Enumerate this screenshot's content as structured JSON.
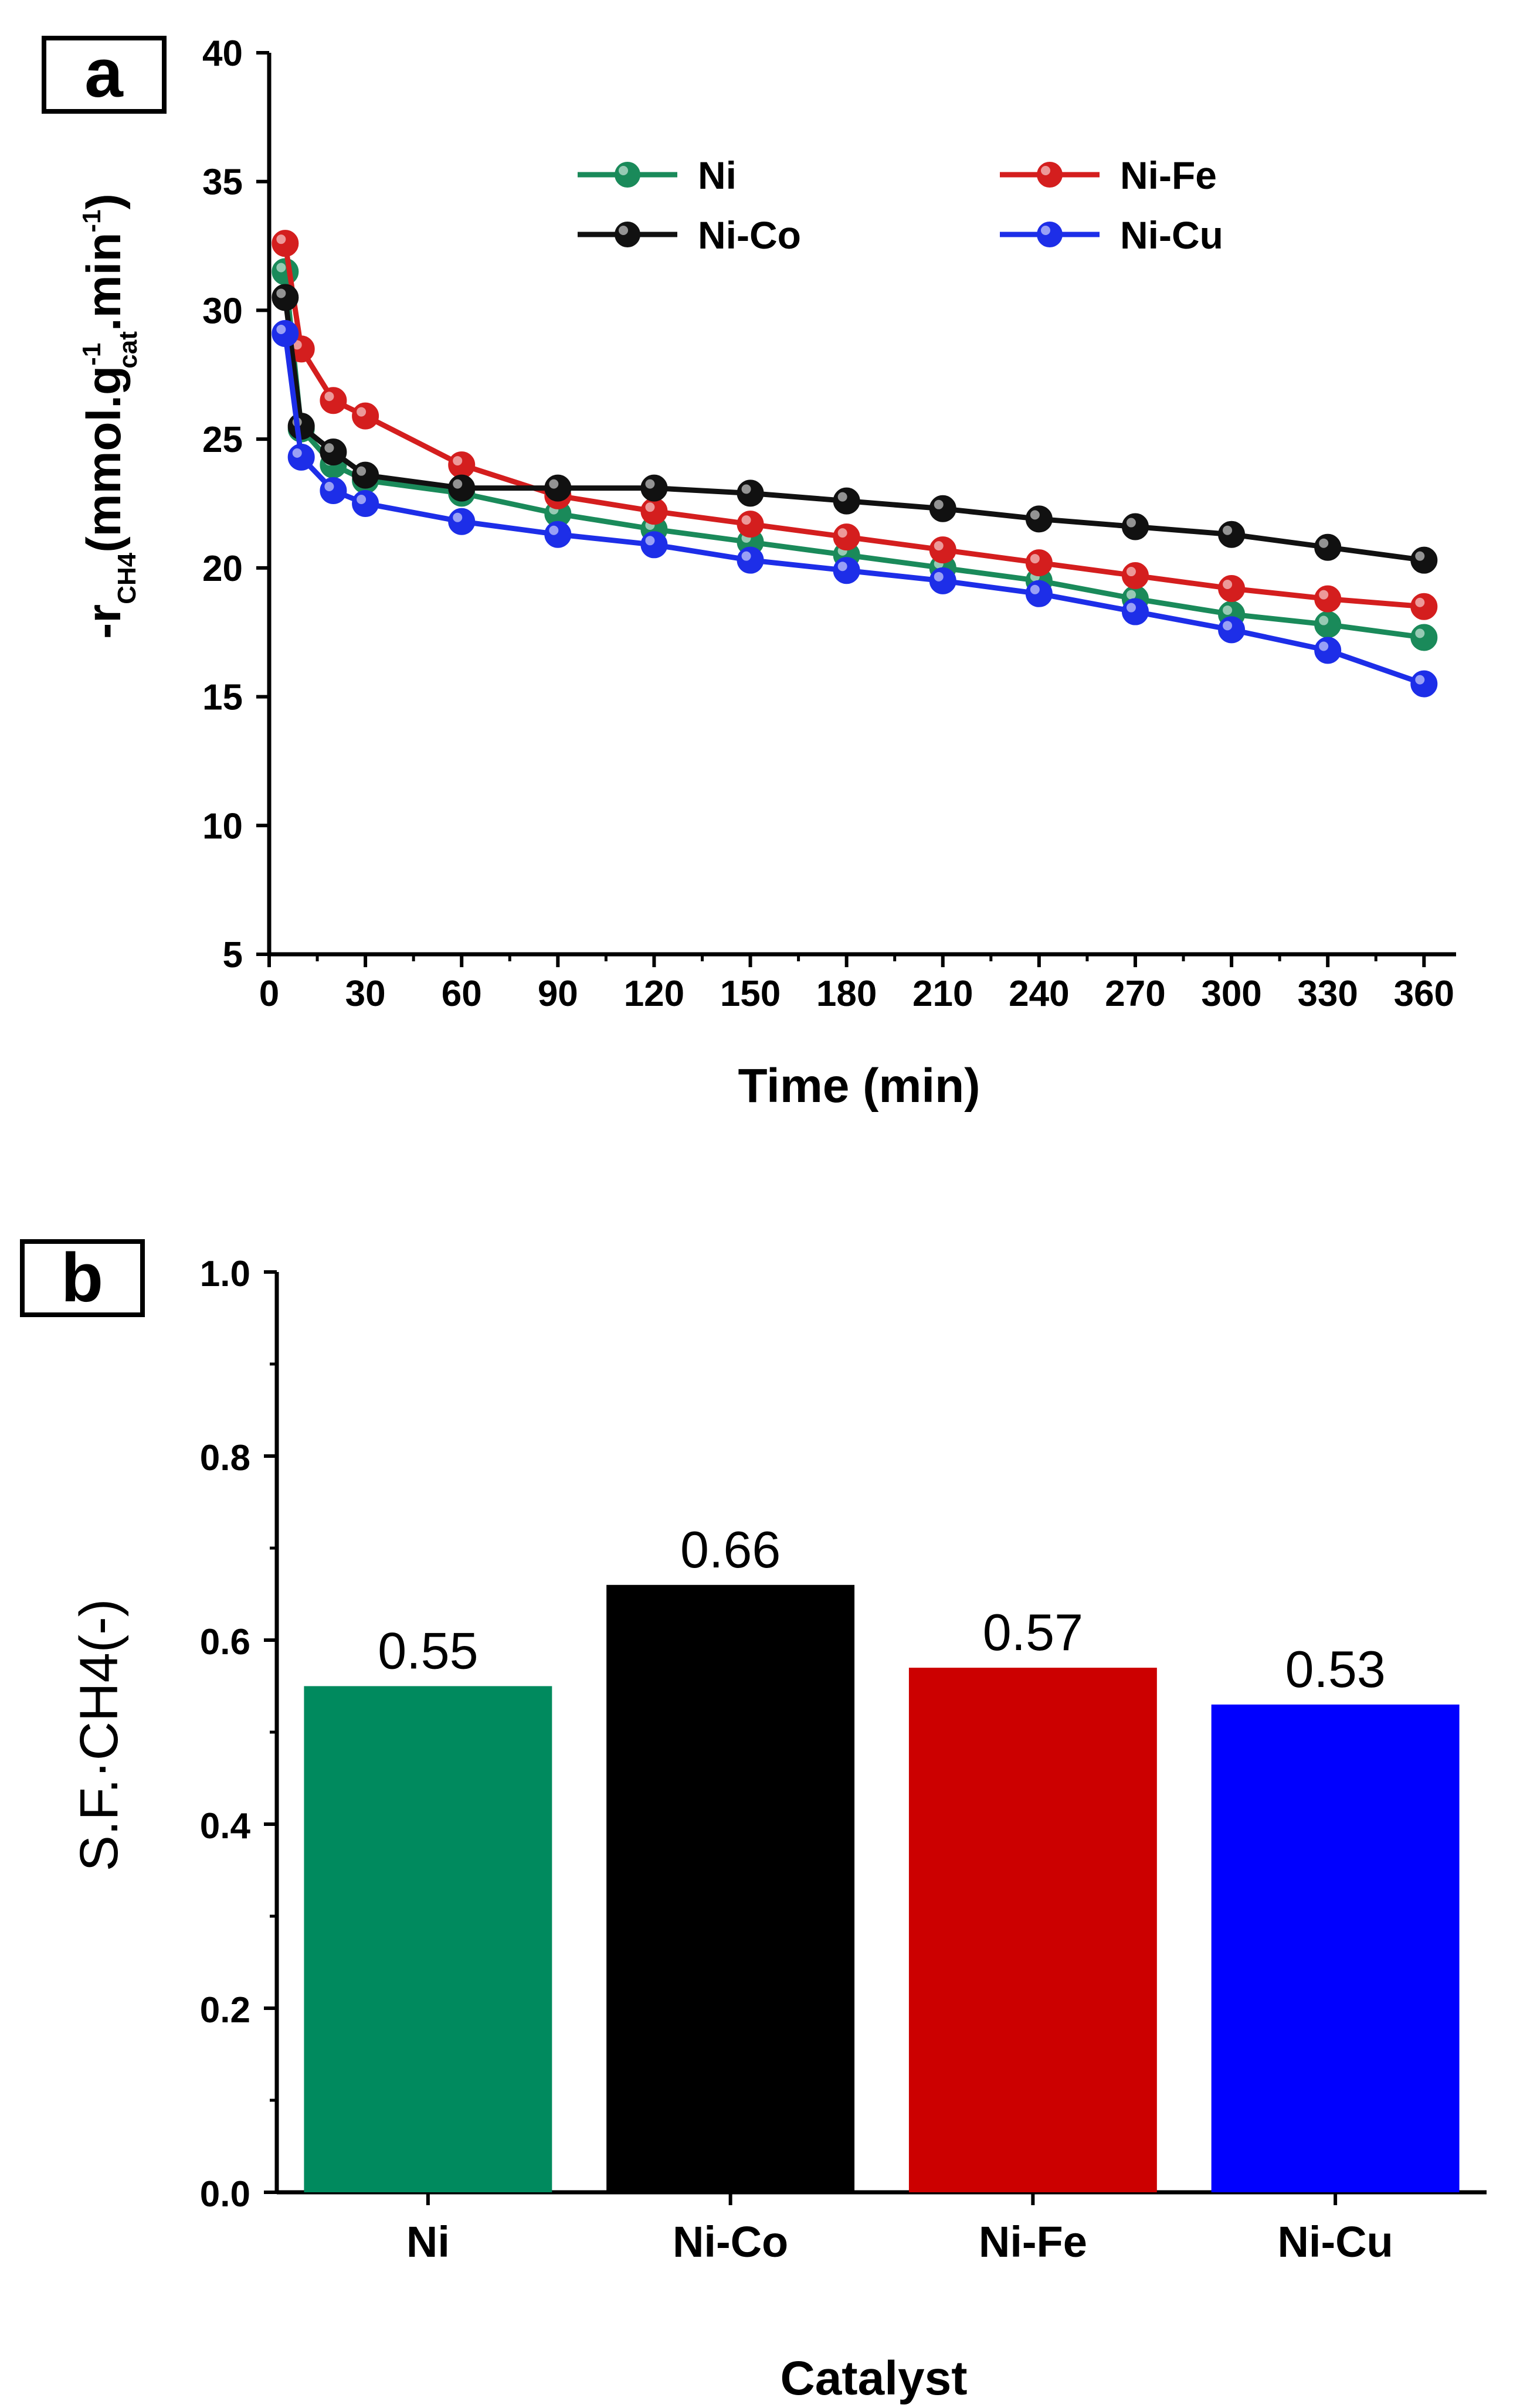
{
  "chart_data": [
    {
      "panel": "a",
      "type": "line",
      "xlabel": "Time (min)",
      "ylabel_parts": [
        "-r",
        "CH4",
        "(mmol.g",
        "-1",
        "cat",
        ".min",
        "-1",
        ")"
      ],
      "xlim": [
        0,
        370
      ],
      "ylim": [
        5,
        40
      ],
      "xticks": [
        0,
        30,
        60,
        90,
        120,
        150,
        180,
        210,
        240,
        270,
        300,
        330,
        360
      ],
      "yticks": [
        5,
        10,
        15,
        20,
        25,
        30,
        35,
        40
      ],
      "x": [
        5,
        10,
        20,
        30,
        60,
        90,
        120,
        150,
        180,
        210,
        240,
        270,
        300,
        330,
        360
      ],
      "legend": {
        "placement": "top-right"
      },
      "series": [
        {
          "name": "Ni",
          "color": "#1a8a5a",
          "values": [
            31.5,
            25.4,
            24.0,
            23.4,
            22.9,
            22.1,
            21.5,
            21.0,
            20.5,
            20.0,
            19.5,
            18.8,
            18.2,
            17.8,
            17.3
          ]
        },
        {
          "name": "Ni-Fe",
          "color": "#d41e1e",
          "values": [
            32.6,
            28.5,
            26.5,
            25.9,
            24.0,
            22.8,
            22.2,
            21.7,
            21.2,
            20.7,
            20.2,
            19.7,
            19.2,
            18.8,
            18.5
          ]
        },
        {
          "name": "Ni-Co",
          "color": "#111111",
          "values": [
            30.5,
            25.5,
            24.5,
            23.6,
            23.1,
            23.1,
            23.1,
            22.9,
            22.6,
            22.3,
            21.9,
            21.6,
            21.3,
            20.8,
            20.3
          ]
        },
        {
          "name": "Ni-Cu",
          "color": "#1d2ee8",
          "values": [
            29.1,
            24.3,
            23.0,
            22.5,
            21.8,
            21.3,
            20.9,
            20.3,
            19.9,
            19.5,
            19.0,
            18.3,
            17.6,
            16.8,
            15.5
          ]
        }
      ]
    },
    {
      "panel": "b",
      "type": "bar",
      "xlabel": "Catalyst",
      "ylabel": "S.F.·CH4(-)",
      "ylim": [
        0,
        1.0
      ],
      "yticks": [
        "0.0",
        "0.2",
        "0.4",
        "0.6",
        "0.8",
        "1.0"
      ],
      "categories": [
        "Ni",
        "Ni-Co",
        "Ni-Fe",
        "Ni-Cu"
      ],
      "values": [
        0.55,
        0.66,
        0.57,
        0.53
      ],
      "value_labels": [
        "0.55",
        "0.66",
        "0.57",
        "0.53"
      ],
      "colors": [
        "#008a5e",
        "#000000",
        "#cc0000",
        "#0000ff"
      ]
    }
  ]
}
